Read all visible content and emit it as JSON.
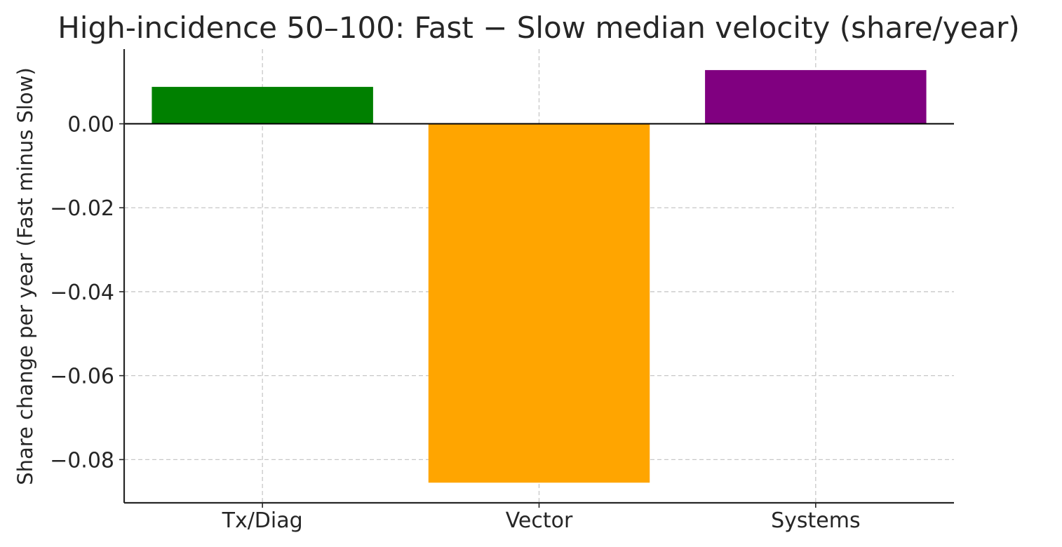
{
  "chart_data": {
    "type": "bar",
    "title": "High-incidence 50–100: Fast − Slow median velocity (share/year)",
    "xlabel": "",
    "ylabel": "Share change per year (Fast minus Slow)",
    "categories": [
      "Tx/Diag",
      "Vector",
      "Systems"
    ],
    "values": [
      0.0088,
      -0.0855,
      0.0128
    ],
    "colors": [
      "#008000",
      "#ffa500",
      "#800080"
    ],
    "ylim": [
      -0.0903,
      0.0178
    ],
    "yticks": [
      0.0,
      -0.02,
      -0.04,
      -0.06,
      -0.08
    ],
    "ytick_labels": [
      "0.00",
      "−0.02",
      "−0.04",
      "−0.06",
      "−0.08"
    ],
    "grid": true,
    "zero_line": true
  }
}
